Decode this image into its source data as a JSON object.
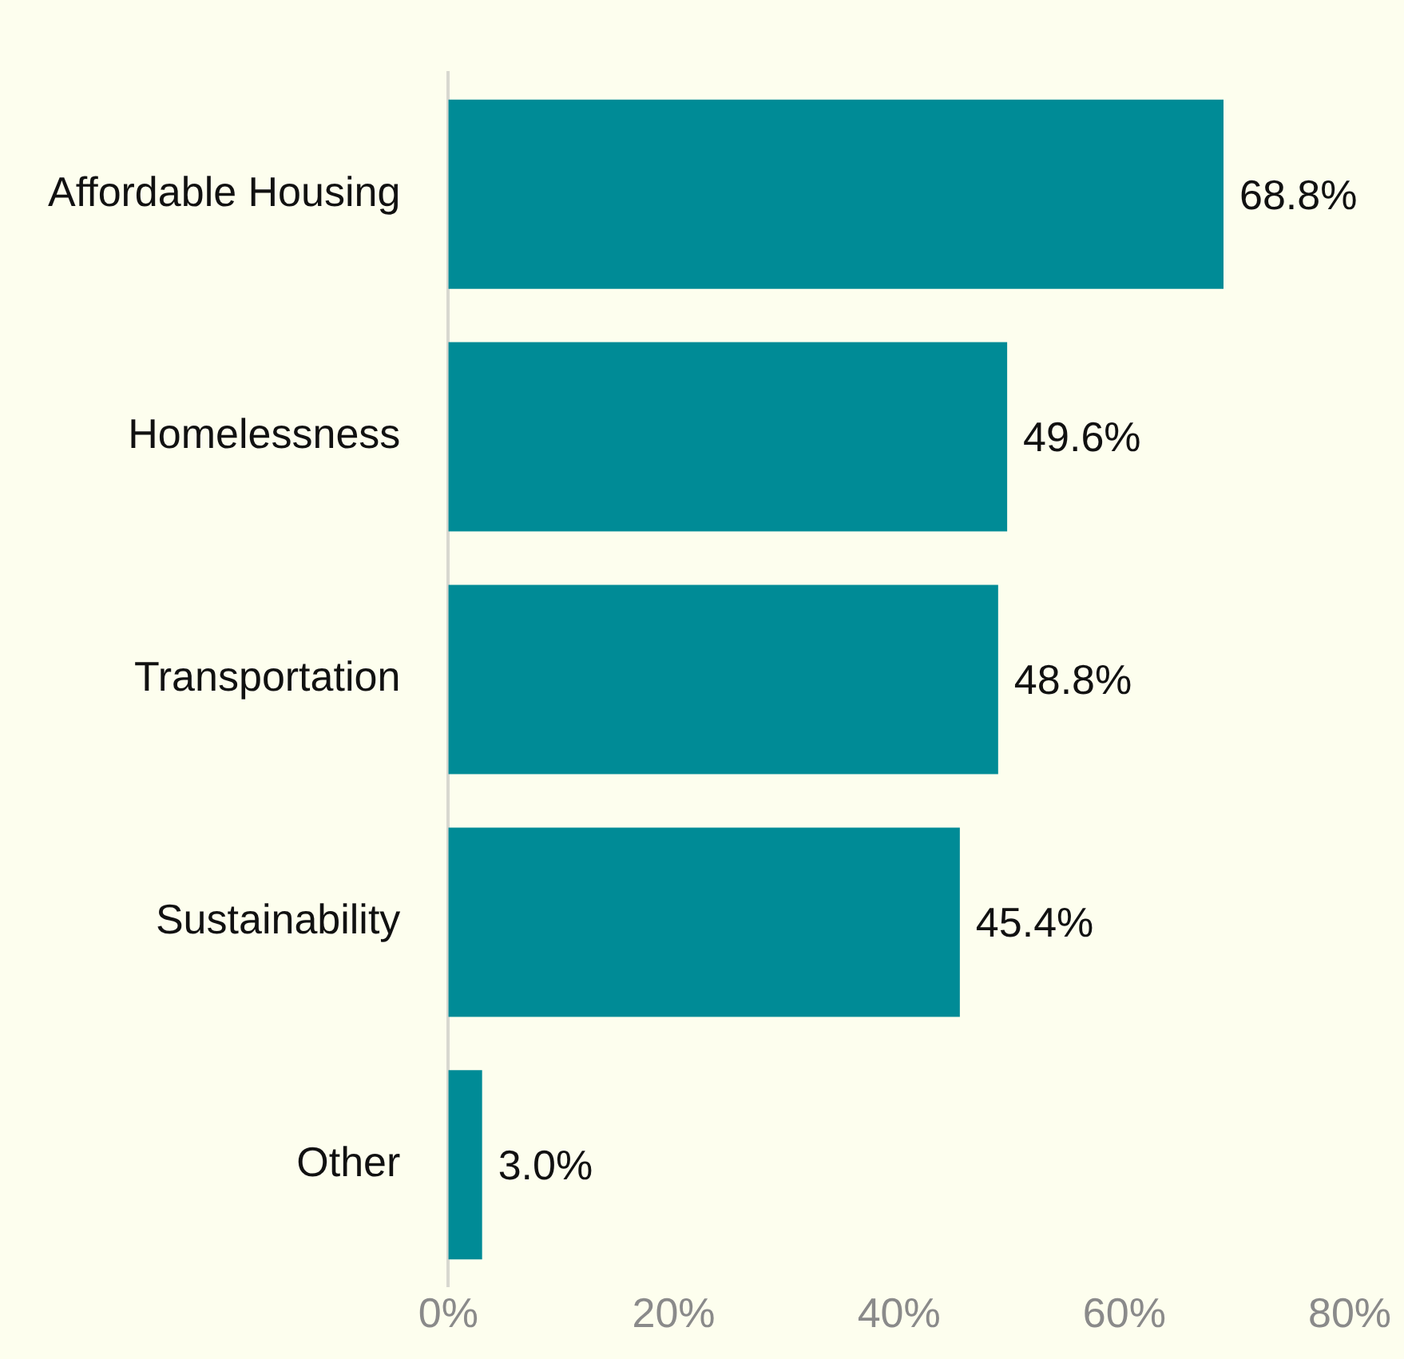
{
  "chart_data": {
    "type": "bar",
    "orientation": "horizontal",
    "categories": [
      "Affordable Housing",
      "Homelessness",
      "Transportation",
      "Sustainability",
      "Other"
    ],
    "values": [
      68.8,
      49.6,
      48.8,
      45.4,
      3.0
    ],
    "value_labels": [
      "68.8%",
      "49.6%",
      "48.8%",
      "45.4%",
      "3.0%"
    ],
    "color": "#008b96",
    "xlim": [
      0,
      80
    ],
    "xticks": [
      {
        "value": 0,
        "label": "0%"
      },
      {
        "value": 20,
        "label": "20%"
      },
      {
        "value": 40,
        "label": "40%"
      },
      {
        "value": 60,
        "label": "60%"
      },
      {
        "value": 80,
        "label": "80%"
      }
    ],
    "grid": false,
    "legend": false
  }
}
